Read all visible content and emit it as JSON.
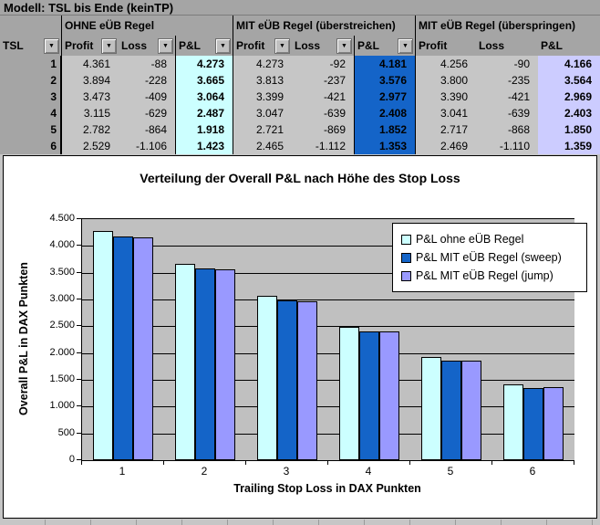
{
  "model_title": "Modell: TSL bis Ende (keinTP)",
  "table": {
    "tsl_header": "TSL",
    "groups": [
      {
        "label": "OHNE eÜB Regel",
        "has_filters": true
      },
      {
        "label": "MIT eÜB Regel (überstreichen)",
        "has_filters": true
      },
      {
        "label": "MIT eÜB Regel (überspringen)",
        "has_filters": false
      }
    ],
    "columns": [
      "Profit",
      "Loss",
      "P&L"
    ],
    "rows": [
      {
        "tsl": "1",
        "cells": [
          "4.361",
          "-88",
          "4.273",
          "4.273",
          "-92",
          "4.181",
          "4.256",
          "-90",
          "4.166"
        ]
      },
      {
        "tsl": "2",
        "cells": [
          "3.894",
          "-228",
          "3.665",
          "3.813",
          "-237",
          "3.576",
          "3.800",
          "-235",
          "3.564"
        ]
      },
      {
        "tsl": "3",
        "cells": [
          "3.473",
          "-409",
          "3.064",
          "3.399",
          "-421",
          "2.977",
          "3.390",
          "-421",
          "2.969"
        ]
      },
      {
        "tsl": "4",
        "cells": [
          "3.115",
          "-629",
          "2.487",
          "3.047",
          "-639",
          "2.408",
          "3.041",
          "-639",
          "2.403"
        ]
      },
      {
        "tsl": "5",
        "cells": [
          "2.782",
          "-864",
          "1.918",
          "2.721",
          "-869",
          "1.852",
          "2.717",
          "-868",
          "1.850"
        ]
      },
      {
        "tsl": "6",
        "cells": [
          "2.529",
          "-1.106",
          "1.423",
          "2.465",
          "-1.112",
          "1.353",
          "2.469",
          "-1.110",
          "1.359"
        ]
      }
    ]
  },
  "chart_data": {
    "type": "bar",
    "title": "Verteilung der Overall P&L nach Höhe des Stop Loss",
    "xlabel": "Trailing Stop Loss in DAX Punkten",
    "ylabel": "Overall P&L in DAX Punkten",
    "categories": [
      "1",
      "2",
      "3",
      "4",
      "5",
      "6"
    ],
    "series": [
      {
        "name": "P&L ohne eÜB Regel",
        "color": "#CCFFFF",
        "values": [
          4273,
          3665,
          3064,
          2487,
          1918,
          1423
        ]
      },
      {
        "name": "P&L MIT eÜB Regel (sweep)",
        "color": "#1464C8",
        "values": [
          4181,
          3576,
          2977,
          2408,
          1852,
          1353
        ]
      },
      {
        "name": "P&L MIT eÜB Regel (jump)",
        "color": "#9999FF",
        "values": [
          4166,
          3564,
          2969,
          2403,
          1850,
          1359
        ]
      }
    ],
    "ylim": [
      0,
      4500
    ],
    "ytick_step": 500,
    "ytick_labels": [
      "0",
      "500",
      "1.000",
      "1.500",
      "2.000",
      "2.500",
      "3.000",
      "3.500",
      "4.000",
      "4.500"
    ],
    "grid": true,
    "legend_position": "top-right",
    "plot_bg": "#C0C0C0"
  },
  "colors": {
    "header_gray": "#A5A5A5",
    "cell_gray": "#C6C6C6",
    "pnl_ohne_bg": "#CCFFFF",
    "pnl_sweep_bg": "#1464C8",
    "pnl_jump_bg": "#CCCCFF",
    "filter_icon": "▼"
  }
}
